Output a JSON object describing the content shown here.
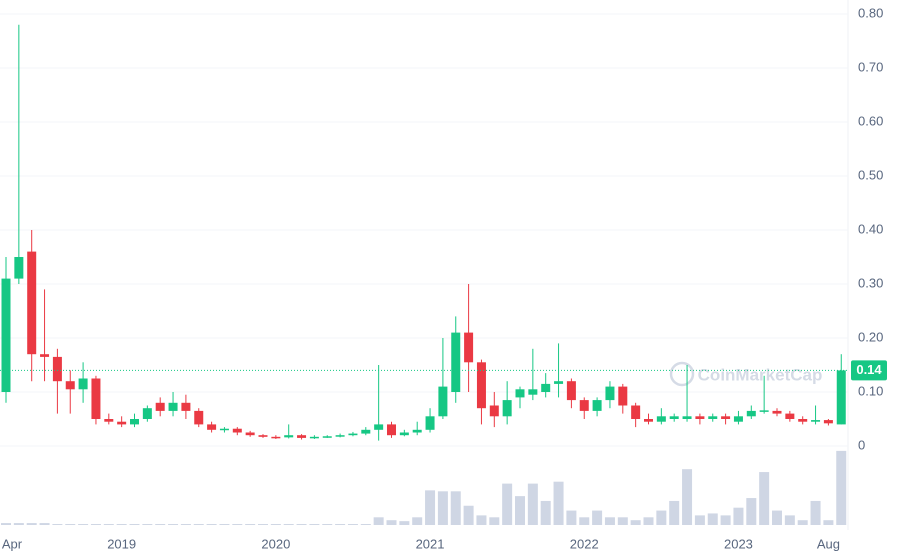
{
  "chart_data": {
    "type": "candlestick",
    "x": [
      "Apr",
      null,
      null,
      null,
      null,
      null,
      null,
      null,
      null,
      "2019",
      null,
      null,
      null,
      null,
      null,
      null,
      null,
      null,
      null,
      null,
      null,
      "2020",
      null,
      null,
      null,
      null,
      null,
      null,
      null,
      null,
      null,
      null,
      null,
      "2021",
      null,
      null,
      null,
      null,
      null,
      null,
      null,
      null,
      null,
      null,
      null,
      "2022",
      null,
      null,
      null,
      null,
      null,
      null,
      null,
      null,
      null,
      null,
      null,
      "2023",
      null,
      null,
      null,
      null,
      null,
      null,
      "Aug",
      null
    ],
    "open": [
      0.1,
      0.31,
      0.36,
      0.17,
      0.165,
      0.12,
      0.105,
      0.125,
      0.05,
      0.045,
      0.04,
      0.05,
      0.08,
      0.065,
      0.08,
      0.065,
      0.04,
      0.03,
      0.032,
      0.025,
      0.02,
      0.017,
      0.016,
      0.02,
      0.015,
      0.017,
      0.018,
      0.02,
      0.023,
      0.03,
      0.04,
      0.02,
      0.025,
      0.03,
      0.055,
      0.1,
      0.21,
      0.155,
      0.075,
      0.055,
      0.09,
      0.095,
      0.1,
      0.115,
      0.12,
      0.085,
      0.065,
      0.085,
      0.11,
      0.075,
      0.05,
      0.045,
      0.05,
      0.05,
      0.055,
      0.05,
      0.055,
      0.045,
      0.055,
      0.065,
      0.065,
      0.06,
      0.05,
      0.045,
      0.048,
      0.04
    ],
    "high": [
      0.35,
      0.78,
      0.4,
      0.29,
      0.18,
      0.14,
      0.155,
      0.13,
      0.06,
      0.055,
      0.06,
      0.075,
      0.09,
      0.1,
      0.095,
      0.07,
      0.045,
      0.035,
      0.035,
      0.028,
      0.022,
      0.02,
      0.04,
      0.022,
      0.02,
      0.02,
      0.023,
      0.026,
      0.035,
      0.15,
      0.045,
      0.03,
      0.045,
      0.07,
      0.2,
      0.24,
      0.3,
      0.16,
      0.1,
      0.12,
      0.11,
      0.18,
      0.135,
      0.19,
      0.125,
      0.09,
      0.09,
      0.12,
      0.115,
      0.08,
      0.06,
      0.07,
      0.06,
      0.15,
      0.06,
      0.06,
      0.06,
      0.065,
      0.075,
      0.13,
      0.07,
      0.065,
      0.055,
      0.075,
      0.05,
      0.17
    ],
    "low": [
      0.08,
      0.3,
      0.12,
      0.12,
      0.06,
      0.06,
      0.08,
      0.04,
      0.04,
      0.035,
      0.035,
      0.045,
      0.055,
      0.055,
      0.05,
      0.035,
      0.025,
      0.025,
      0.02,
      0.017,
      0.015,
      0.013,
      0.014,
      0.012,
      0.013,
      0.015,
      0.016,
      0.018,
      0.02,
      0.01,
      0.015,
      0.018,
      0.02,
      0.025,
      0.05,
      0.08,
      0.1,
      0.04,
      0.035,
      0.04,
      0.07,
      0.085,
      0.09,
      0.09,
      0.07,
      0.05,
      0.055,
      0.07,
      0.06,
      0.035,
      0.04,
      0.04,
      0.045,
      0.045,
      0.04,
      0.045,
      0.04,
      0.04,
      0.05,
      0.06,
      0.055,
      0.045,
      0.04,
      0.04,
      0.038,
      0.04
    ],
    "close": [
      0.31,
      0.35,
      0.17,
      0.165,
      0.12,
      0.105,
      0.125,
      0.05,
      0.045,
      0.04,
      0.05,
      0.07,
      0.065,
      0.08,
      0.065,
      0.04,
      0.03,
      0.032,
      0.025,
      0.02,
      0.017,
      0.016,
      0.02,
      0.015,
      0.017,
      0.018,
      0.02,
      0.023,
      0.03,
      0.04,
      0.02,
      0.025,
      0.03,
      0.055,
      0.11,
      0.21,
      0.155,
      0.07,
      0.055,
      0.085,
      0.105,
      0.105,
      0.115,
      0.12,
      0.085,
      0.065,
      0.085,
      0.11,
      0.075,
      0.05,
      0.045,
      0.055,
      0.055,
      0.055,
      0.05,
      0.055,
      0.05,
      0.055,
      0.065,
      0.066,
      0.06,
      0.05,
      0.045,
      0.048,
      0.042,
      0.14
    ],
    "volume": [
      2,
      2,
      2,
      2,
      1,
      1,
      1,
      1,
      1,
      1,
      1,
      1,
      1,
      1,
      1,
      1,
      1,
      1,
      1,
      1,
      1,
      1,
      1,
      1,
      1,
      1,
      1,
      1,
      1,
      8,
      5,
      4,
      8,
      36,
      35,
      35,
      20,
      10,
      8,
      43,
      30,
      43,
      25,
      45,
      15,
      8,
      15,
      8,
      8,
      5,
      8,
      15,
      25,
      58,
      10,
      12,
      10,
      18,
      28,
      55,
      15,
      10,
      5,
      25,
      5,
      77
    ],
    "vlim": [
      0,
      80
    ],
    "up_color": "#16c784",
    "down_color": "#ea3943",
    "volume_color": "#cfd6e4",
    "ylim": [
      0,
      0.8
    ],
    "yticks": [
      0,
      {
        "value": 0.1,
        "label": "0.10"
      },
      {
        "value": 0.2,
        "label": "0.20"
      },
      {
        "value": 0.3,
        "label": "0.30"
      },
      {
        "value": 0.4,
        "label": "0.40"
      },
      {
        "value": 0.5,
        "label": "0.50"
      },
      {
        "value": 0.6,
        "label": "0.60"
      },
      {
        "value": 0.7,
        "label": "0.70"
      },
      {
        "value": 0.8,
        "label": "0.80"
      }
    ],
    "grid": true,
    "current_price": 0.14,
    "watermark": "CoinMarketCap"
  }
}
